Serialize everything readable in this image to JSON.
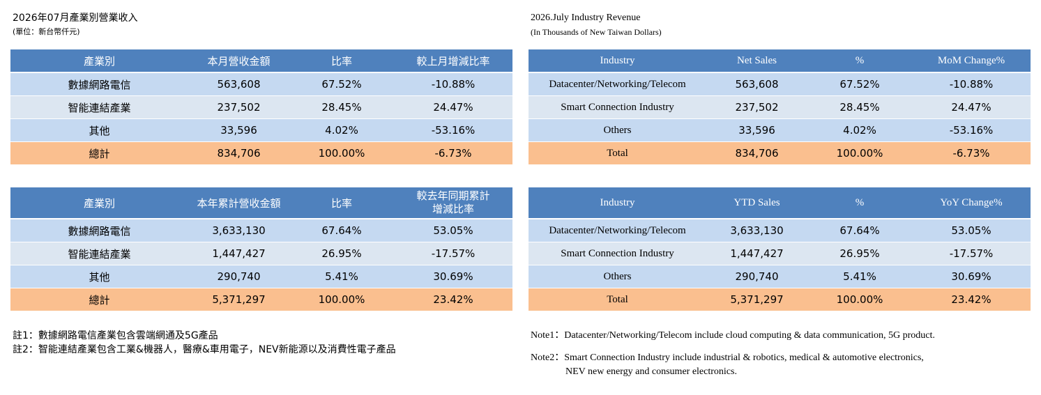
{
  "zh": {
    "title": "2026年07月產業別營業收入",
    "subtitle": "(單位：新台幣仟元)",
    "monthly": {
      "headers": [
        "產業別",
        "本月營收金額",
        "比率",
        "較上月增減比率"
      ],
      "rows": [
        [
          "數據網路電信",
          "563,608",
          "67.52%",
          "-10.88%"
        ],
        [
          "智能連結產業",
          "237,502",
          "28.45%",
          "24.47%"
        ],
        [
          "其他",
          "33,596",
          "4.02%",
          "-53.16%"
        ],
        [
          "總計",
          "834,706",
          "100.00%",
          "-6.73%"
        ]
      ]
    },
    "ytd": {
      "headers": [
        "產業別",
        "本年累計營收金額",
        "比率",
        "較去年同期累計\n增減比率"
      ],
      "rows": [
        [
          "數據網路電信",
          "3,633,130",
          "67.64%",
          "53.05%"
        ],
        [
          "智能連結產業",
          "1,447,427",
          "26.95%",
          "-17.57%"
        ],
        [
          "其他",
          "290,740",
          "5.41%",
          "30.69%"
        ],
        [
          "總計",
          "5,371,297",
          "100.00%",
          "23.42%"
        ]
      ]
    },
    "notes": {
      "note1": "註1：數據網路電信產業包含雲端網通及5G產品",
      "note2": "註2：智能連結產業包含工業&機器人，醫療&車用電子，NEV新能源以及消費性電子產品"
    }
  },
  "en": {
    "title": "2026.July  Industry Revenue",
    "subtitle": "(In Thousands of New Taiwan Dollars)",
    "monthly": {
      "headers": [
        "Industry",
        "Net Sales",
        "%",
        "MoM Change%"
      ],
      "rows": [
        [
          "Datacenter/Networking/Telecom",
          "563,608",
          "67.52%",
          "-10.88%"
        ],
        [
          "Smart Connection Industry",
          "237,502",
          "28.45%",
          "24.47%"
        ],
        [
          "Others",
          "33,596",
          "4.02%",
          "-53.16%"
        ],
        [
          "Total",
          "834,706",
          "100.00%",
          "-6.73%"
        ]
      ]
    },
    "ytd": {
      "headers": [
        "Industry",
        "YTD Sales",
        "%",
        "YoY Change%"
      ],
      "rows": [
        [
          "Datacenter/Networking/Telecom",
          "3,633,130",
          "67.64%",
          "53.05%"
        ],
        [
          "Smart Connection Industry",
          "1,447,427",
          "26.95%",
          "-17.57%"
        ],
        [
          "Others",
          "290,740",
          "5.41%",
          "30.69%"
        ],
        [
          "Total",
          "5,371,297",
          "100.00%",
          "23.42%"
        ]
      ]
    },
    "notes": {
      "note1": "Note1：Datacenter/Networking/Telecom include cloud computing & data communication, 5G product.",
      "note2_line1": "Note2：Smart Connection Industry include industrial & robotics, medical & automotive electronics,",
      "note2_line2": "NEV new energy and consumer electronics."
    }
  },
  "colors": {
    "header": "#4f81bd",
    "row_dark": "#c5d9f1",
    "row_light": "#dce6f1",
    "total": "#fabf8f"
  }
}
